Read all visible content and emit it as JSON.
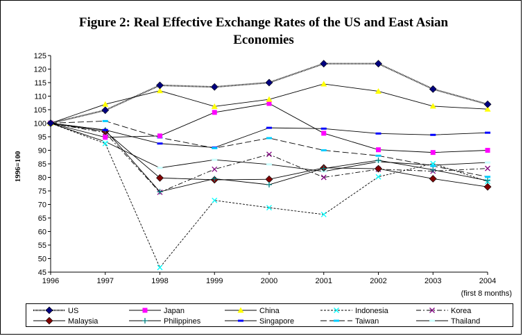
{
  "chart_data": {
    "type": "line",
    "title": "Figure 2: Real Effective Exchange Rates of the US and East Asian Economies",
    "title_lines": [
      "Figure 2: Real Effective Exchange Rates of the US and East Asian",
      "Economies"
    ],
    "ylabel": "1996=100",
    "xlabel": "",
    "x": [
      "1996",
      "1997",
      "1998",
      "1999",
      "2000",
      "2001",
      "2002",
      "2003",
      "2004"
    ],
    "x_note": "(first 8 months)",
    "ylim": [
      45,
      125
    ],
    "yticks": [
      45,
      50,
      55,
      60,
      65,
      70,
      75,
      80,
      85,
      90,
      95,
      100,
      105,
      110,
      115,
      120,
      125
    ],
    "grid": false,
    "legend_position": "bottom",
    "series": [
      {
        "name": "US",
        "color": "#000080",
        "dash": "dotted-bold",
        "marker": "diamond",
        "values": [
          100,
          104.8,
          114,
          113.4,
          115,
          122,
          122,
          112.6,
          107
        ]
      },
      {
        "name": "Japan",
        "color": "#ff00ff",
        "dash": "solid",
        "marker": "square",
        "values": [
          100,
          94.8,
          95.3,
          104,
          107.3,
          96.3,
          90.2,
          89.2,
          90
        ]
      },
      {
        "name": "China",
        "color": "#ffff00",
        "dash": "solid",
        "marker": "triangle",
        "values": [
          100,
          107,
          112,
          106.2,
          108.8,
          114.5,
          111.8,
          106.3,
          105.2
        ]
      },
      {
        "name": "Indonesia",
        "color": "#00ffff",
        "dash": "dashed",
        "marker": "x",
        "values": [
          100,
          92.5,
          46.7,
          71.5,
          68.8,
          66.3,
          80.2,
          85.1,
          78.5
        ]
      },
      {
        "name": "Korea",
        "color": "#800080",
        "dash": "dashdot",
        "marker": "x",
        "values": [
          100,
          96.5,
          74.5,
          83,
          88.5,
          80,
          83,
          82.3,
          83.3
        ]
      },
      {
        "name": "Malaysia",
        "color": "#800000",
        "dash": "solid",
        "marker": "diamond",
        "values": [
          100,
          97,
          79.8,
          79.1,
          79.3,
          83.5,
          83.2,
          79.5,
          76.5
        ]
      },
      {
        "name": "Philippines",
        "color": "#008080",
        "dash": "solid",
        "marker": "plus",
        "values": [
          100,
          97.5,
          74.7,
          79.5,
          77.3,
          83.3,
          86.3,
          82.8,
          78.8
        ]
      },
      {
        "name": "Singapore",
        "color": "#0000ff",
        "dash": "solid",
        "marker": "dash",
        "values": [
          100,
          97.5,
          92.5,
          91,
          98.3,
          98,
          96.2,
          95.7,
          96.5
        ]
      },
      {
        "name": "Taiwan",
        "color": "#00ccff",
        "dash": "longdash",
        "marker": "dash",
        "values": [
          100,
          100.8,
          94.7,
          90.8,
          94.5,
          90,
          88,
          84.2,
          80.2
        ]
      },
      {
        "name": "Thailand",
        "color": "#ccffff",
        "dash": "solid",
        "marker": "dash",
        "values": [
          100,
          93.2,
          83.5,
          86.5,
          84.8,
          82.2,
          85.8,
          84.5,
          85.5
        ]
      }
    ]
  }
}
